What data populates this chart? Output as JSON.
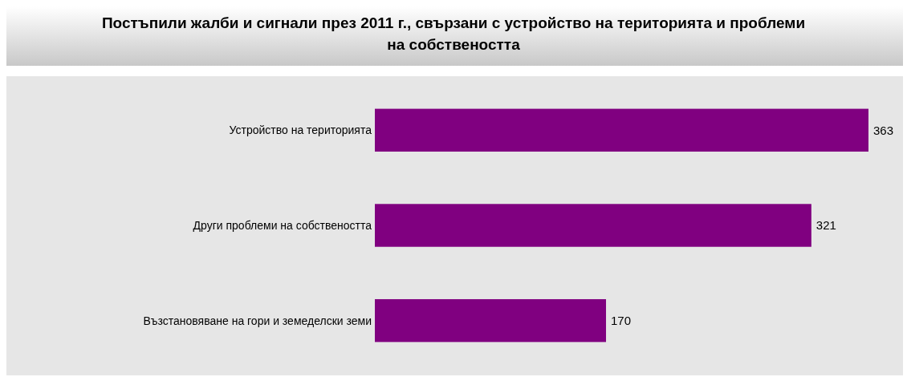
{
  "chart_data": {
    "type": "bar",
    "orientation": "horizontal",
    "title": "Постъпили жалби и сигнали през 2011 г., свързани с устройство на територията и проблеми на собствеността",
    "categories": [
      "Устройство на територията",
      "Други проблеми на собствеността",
      "Възстановяване на гори и земеделски земи"
    ],
    "values": [
      363,
      321,
      170
    ],
    "color": "#800080",
    "data_labels": true
  }
}
